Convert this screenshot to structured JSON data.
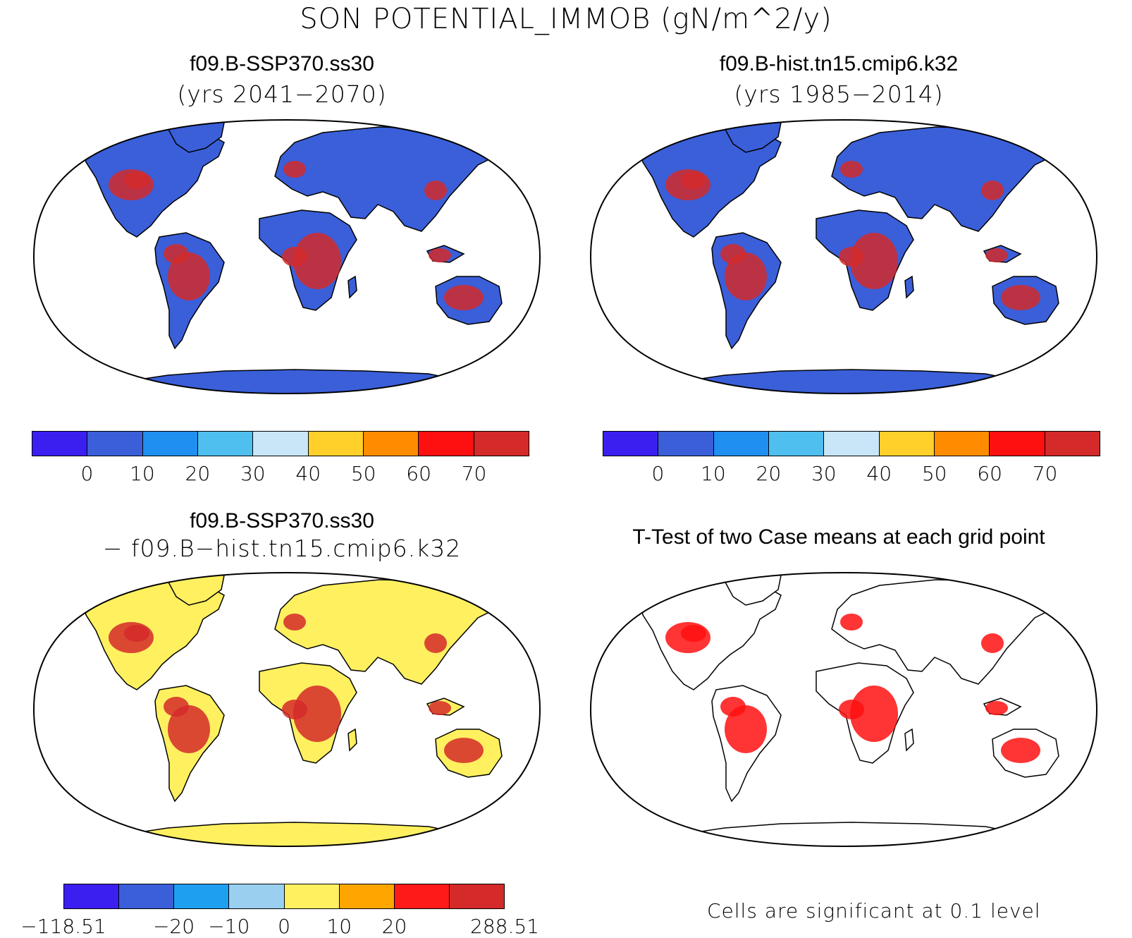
{
  "title": "SON POTENTIAL_IMMOB (gN/m^2/y)",
  "panels": {
    "p1": {
      "title": "f09.B-SSP370.ss30",
      "subtitle": "(yrs 2041−2070)"
    },
    "p2": {
      "title": "f09.B-hist.tn15.cmip6.k32",
      "subtitle": "(yrs 1985−2014)"
    },
    "p3": {
      "title": "f09.B-SSP370.ss30",
      "subtitle": "− f09.B−hist.tn15.cmip6.k32"
    },
    "p4": {
      "title": "T-Test of two Case means at each grid point",
      "note": "Cells are significant at 0.1 level"
    }
  },
  "colorbars": {
    "abs": {
      "colors": [
        "#3a1ff0",
        "#3a5fd9",
        "#1f8ff0",
        "#4fbff0",
        "#c8e6f7",
        "#ffcf2a",
        "#ff8c00",
        "#ff1010",
        "#d42a2a"
      ],
      "ticks": [
        "0",
        "10",
        "20",
        "30",
        "40",
        "50",
        "60",
        "70"
      ]
    },
    "diff": {
      "colors": [
        "#3a1ff0",
        "#3a5fd9",
        "#1f9ff0",
        "#9acff0",
        "#fff060",
        "#ffa500",
        "#ff1a1a",
        "#d42a2a"
      ],
      "ticks": [
        "−118.51",
        "−20",
        "−10",
        "0",
        "10",
        "20",
        "288.51"
      ]
    }
  },
  "maps": {
    "p1": {
      "ocean": "#ffffff",
      "land_base": "#3a5fd9",
      "hot": "#d42a2a"
    },
    "p2": {
      "ocean": "#ffffff",
      "land_base": "#3a5fd9",
      "hot": "#d42a2a"
    },
    "p3": {
      "ocean": "#ffffff",
      "land_base": "#fff060",
      "hot": "#d42a2a"
    },
    "p4": {
      "ocean": "#ffffff",
      "land_base": "#ffffff",
      "hot": "#ff1010"
    }
  }
}
